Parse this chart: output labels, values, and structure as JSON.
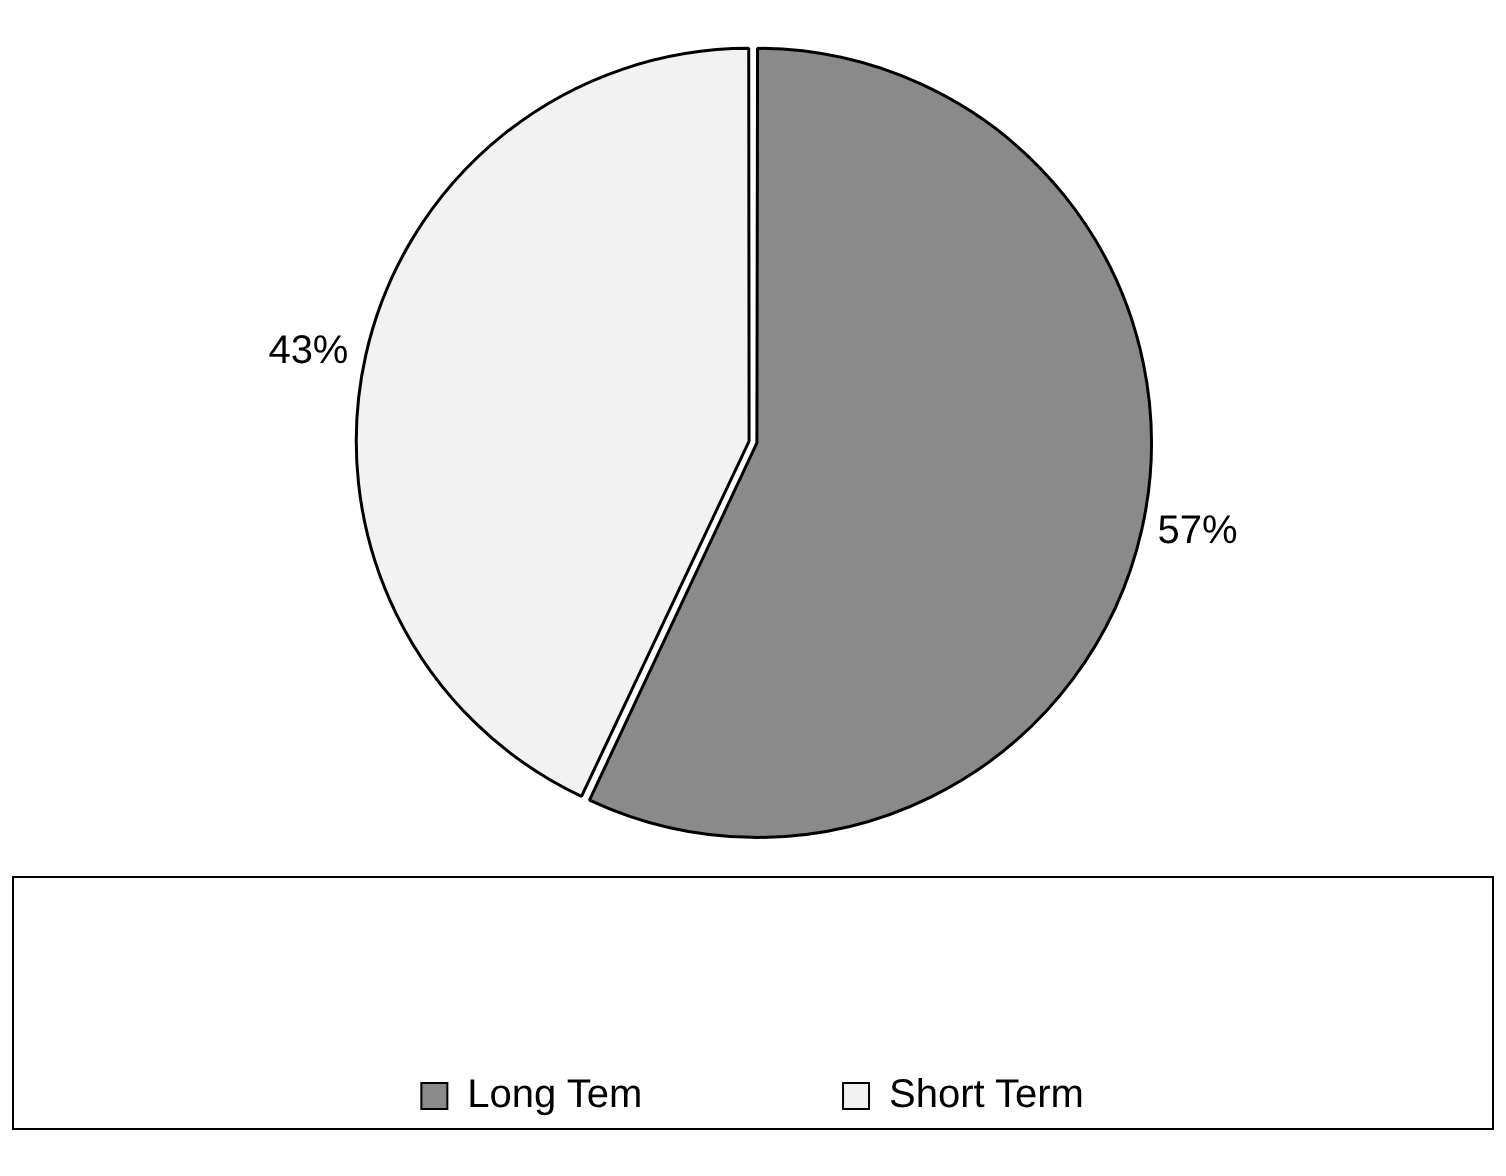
{
  "chart_data": {
    "type": "pie",
    "categories": [
      "Long Tem",
      "Short Term"
    ],
    "values": [
      57,
      43
    ],
    "colors": [
      "#8a8a8a",
      "#f2f2f2"
    ],
    "value_labels": [
      "57%",
      "43%"
    ],
    "legend": "bottom"
  }
}
